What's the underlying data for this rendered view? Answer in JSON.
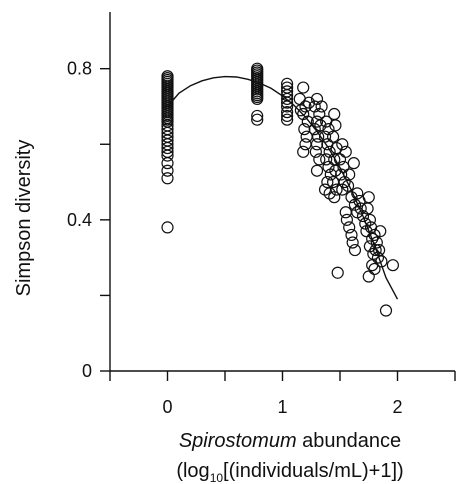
{
  "chart_data": {
    "type": "scatter",
    "xlabel_italic": "Spirostomum",
    "xlabel_rest": " abundance",
    "xlabel_unit_pre": "(log",
    "xlabel_unit_sub": "10",
    "xlabel_unit_post": "[(individuals/mL)+1])",
    "ylabel": "Simpson diversity",
    "xlim": [
      -0.5,
      2.5
    ],
    "ylim": [
      0,
      0.95
    ],
    "x_ticks": [
      0,
      1,
      2
    ],
    "x_tick_labels": [
      "0",
      "1",
      "2"
    ],
    "y_ticks": [
      0,
      0.4,
      0.8
    ],
    "y_tick_labels": [
      "0",
      "0.4",
      "0.8"
    ],
    "y_minor_ticks": [
      0.2,
      0.6
    ],
    "grid": false,
    "legend": "none",
    "points": [
      [
        0,
        0.78
      ],
      [
        0,
        0.775
      ],
      [
        0,
        0.77
      ],
      [
        0,
        0.765
      ],
      [
        0,
        0.76
      ],
      [
        0,
        0.755
      ],
      [
        0,
        0.75
      ],
      [
        0,
        0.745
      ],
      [
        0,
        0.74
      ],
      [
        0,
        0.735
      ],
      [
        0,
        0.73
      ],
      [
        0,
        0.725
      ],
      [
        0,
        0.72
      ],
      [
        0,
        0.715
      ],
      [
        0,
        0.71
      ],
      [
        0,
        0.705
      ],
      [
        0,
        0.7
      ],
      [
        0,
        0.695
      ],
      [
        0,
        0.69
      ],
      [
        0,
        0.685
      ],
      [
        0,
        0.68
      ],
      [
        0,
        0.675
      ],
      [
        0,
        0.67
      ],
      [
        0,
        0.665
      ],
      [
        0,
        0.66
      ],
      [
        0,
        0.65
      ],
      [
        0,
        0.64
      ],
      [
        0,
        0.63
      ],
      [
        0,
        0.62
      ],
      [
        0,
        0.61
      ],
      [
        0,
        0.6
      ],
      [
        0,
        0.59
      ],
      [
        0,
        0.58
      ],
      [
        0,
        0.57
      ],
      [
        0,
        0.55
      ],
      [
        0,
        0.53
      ],
      [
        0,
        0.51
      ],
      [
        0,
        0.38
      ],
      [
        0.78,
        0.8
      ],
      [
        0.78,
        0.795
      ],
      [
        0.78,
        0.79
      ],
      [
        0.78,
        0.785
      ],
      [
        0.78,
        0.78
      ],
      [
        0.78,
        0.775
      ],
      [
        0.78,
        0.77
      ],
      [
        0.78,
        0.765
      ],
      [
        0.78,
        0.76
      ],
      [
        0.78,
        0.755
      ],
      [
        0.78,
        0.75
      ],
      [
        0.78,
        0.745
      ],
      [
        0.78,
        0.74
      ],
      [
        0.78,
        0.735
      ],
      [
        0.78,
        0.73
      ],
      [
        0.78,
        0.725
      ],
      [
        0.78,
        0.72
      ],
      [
        0.78,
        0.675
      ],
      [
        0.78,
        0.665
      ],
      [
        1.04,
        0.76
      ],
      [
        1.04,
        0.75
      ],
      [
        1.04,
        0.74
      ],
      [
        1.04,
        0.73
      ],
      [
        1.04,
        0.72
      ],
      [
        1.04,
        0.71
      ],
      [
        1.04,
        0.7
      ],
      [
        1.04,
        0.685
      ],
      [
        1.04,
        0.675
      ],
      [
        1.04,
        0.665
      ],
      [
        1.18,
        0.75
      ],
      [
        1.15,
        0.72
      ],
      [
        1.2,
        0.7
      ],
      [
        1.18,
        0.68
      ],
      [
        1.22,
        0.66
      ],
      [
        1.19,
        0.64
      ],
      [
        1.21,
        0.62
      ],
      [
        1.2,
        0.6
      ],
      [
        1.18,
        0.58
      ],
      [
        1.23,
        0.71
      ],
      [
        1.16,
        0.69
      ],
      [
        1.3,
        0.72
      ],
      [
        1.28,
        0.7
      ],
      [
        1.32,
        0.68
      ],
      [
        1.3,
        0.66
      ],
      [
        1.28,
        0.64
      ],
      [
        1.31,
        0.62
      ],
      [
        1.3,
        0.6
      ],
      [
        1.34,
        0.7
      ],
      [
        1.33,
        0.65
      ],
      [
        1.29,
        0.58
      ],
      [
        1.32,
        0.56
      ],
      [
        1.3,
        0.53
      ],
      [
        1.38,
        0.66
      ],
      [
        1.4,
        0.64
      ],
      [
        1.37,
        0.62
      ],
      [
        1.39,
        0.6
      ],
      [
        1.41,
        0.58
      ],
      [
        1.38,
        0.56
      ],
      [
        1.4,
        0.54
      ],
      [
        1.42,
        0.52
      ],
      [
        1.39,
        0.5
      ],
      [
        1.37,
        0.48
      ],
      [
        1.41,
        0.47
      ],
      [
        1.45,
        0.68
      ],
      [
        1.46,
        0.65
      ],
      [
        1.44,
        0.62
      ],
      [
        1.47,
        0.59
      ],
      [
        1.45,
        0.56
      ],
      [
        1.46,
        0.53
      ],
      [
        1.44,
        0.5
      ],
      [
        1.47,
        0.48
      ],
      [
        1.45,
        0.46
      ],
      [
        1.52,
        0.6
      ],
      [
        1.55,
        0.58
      ],
      [
        1.5,
        0.56
      ],
      [
        1.53,
        0.54
      ],
      [
        1.51,
        0.52
      ],
      [
        1.54,
        0.5
      ],
      [
        1.52,
        0.48
      ],
      [
        1.58,
        0.52
      ],
      [
        1.57,
        0.49
      ],
      [
        1.62,
        0.55
      ],
      [
        1.6,
        0.46
      ],
      [
        1.63,
        0.44
      ],
      [
        1.65,
        0.42
      ],
      [
        1.55,
        0.42
      ],
      [
        1.56,
        0.4
      ],
      [
        1.58,
        0.38
      ],
      [
        1.6,
        0.36
      ],
      [
        1.61,
        0.34
      ],
      [
        1.63,
        0.32
      ],
      [
        1.65,
        0.47
      ],
      [
        1.67,
        0.45
      ],
      [
        1.68,
        0.43
      ],
      [
        1.7,
        0.41
      ],
      [
        1.72,
        0.39
      ],
      [
        1.73,
        0.37
      ],
      [
        1.75,
        0.46
      ],
      [
        1.74,
        0.43
      ],
      [
        1.76,
        0.4
      ],
      [
        1.77,
        0.38
      ],
      [
        1.78,
        0.35
      ],
      [
        1.76,
        0.33
      ],
      [
        1.79,
        0.31
      ],
      [
        1.8,
        0.36
      ],
      [
        1.82,
        0.34
      ],
      [
        1.81,
        0.32
      ],
      [
        1.83,
        0.3
      ],
      [
        1.78,
        0.28
      ],
      [
        1.75,
        0.25
      ],
      [
        1.8,
        0.27
      ],
      [
        1.85,
        0.37
      ],
      [
        1.84,
        0.32
      ],
      [
        1.86,
        0.29
      ],
      [
        1.48,
        0.26
      ],
      [
        1.9,
        0.16
      ],
      [
        1.96,
        0.28
      ]
    ],
    "fit_curve": {
      "type": "quadratic",
      "x_range": [
        0,
        2.0
      ],
      "points": [
        [
          0.0,
          0.7
        ],
        [
          0.1,
          0.735
        ],
        [
          0.2,
          0.755
        ],
        [
          0.3,
          0.768
        ],
        [
          0.4,
          0.776
        ],
        [
          0.5,
          0.779
        ],
        [
          0.6,
          0.778
        ],
        [
          0.7,
          0.772
        ],
        [
          0.8,
          0.762
        ],
        [
          0.9,
          0.748
        ],
        [
          1.0,
          0.728
        ],
        [
          1.1,
          0.703
        ],
        [
          1.2,
          0.672
        ],
        [
          1.3,
          0.634
        ],
        [
          1.4,
          0.59
        ],
        [
          1.5,
          0.538
        ],
        [
          1.6,
          0.478
        ],
        [
          1.7,
          0.41
        ],
        [
          1.8,
          0.333
        ],
        [
          1.9,
          0.247
        ],
        [
          2.0,
          0.19
        ]
      ]
    }
  }
}
